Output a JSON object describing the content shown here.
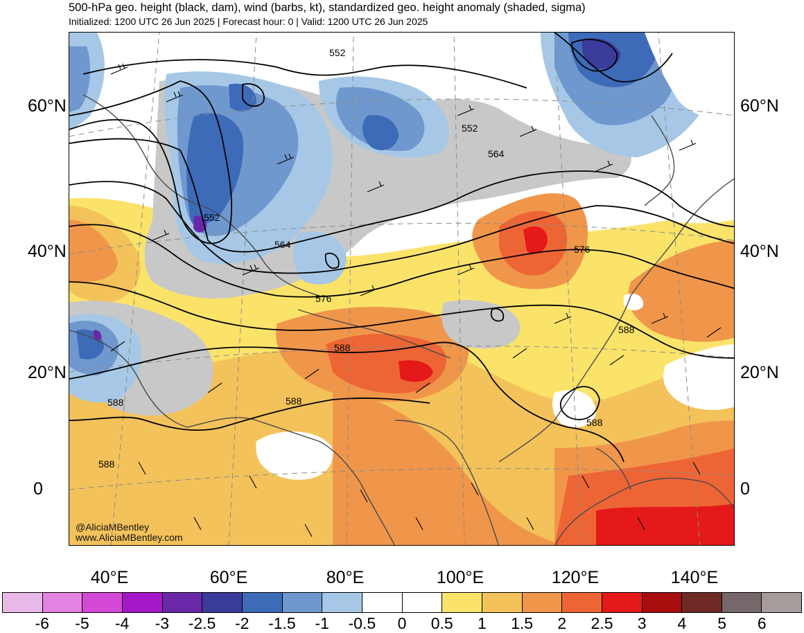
{
  "header": {
    "title": "500-hPa geo. height (black, dam), wind (barbs, kt), standardized geo. height anomaly (shaded, sigma)",
    "subtitle": "Initialized: 1200 UTC 26 Jun 2025 | Forecast hour: 0 | Valid: 1200 UTC 26 Jun 2025"
  },
  "map": {
    "lat_labels_left": [
      "60°N",
      "40°N",
      "20°N",
      "0"
    ],
    "lat_labels_right": [
      "60°N",
      "40°N",
      "20°N",
      "0"
    ],
    "lon_labels": [
      "40°E",
      "60°E",
      "80°E",
      "100°E",
      "120°E",
      "140°E"
    ],
    "contour_labels": [
      "552",
      "552",
      "552",
      "564",
      "564",
      "576",
      "576",
      "588",
      "588",
      "588",
      "588",
      "588",
      "588"
    ],
    "credit_handle": "@AliciaMBentley",
    "credit_url": "www.AliciaMBentley.com"
  },
  "colorbar": {
    "tick_labels": [
      "-6",
      "-5",
      "-4",
      "-3",
      "-2.5",
      "-2",
      "-1.5",
      "-1",
      "-0.5",
      "0",
      "0.5",
      "1",
      "1.5",
      "2",
      "2.5",
      "3",
      "4",
      "5",
      "6"
    ],
    "colors": [
      "#e8b9e6",
      "#e383e1",
      "#d449d6",
      "#a517c7",
      "#6a28a8",
      "#3b3b9b",
      "#3d6bb8",
      "#6f98cf",
      "#a6c8e6",
      "#ffffff",
      "#ffffff",
      "#fbe36a",
      "#f4c25a",
      "#f0964a",
      "#ee6535",
      "#e5191a",
      "#a70d0d",
      "#6f2a26",
      "#76686a",
      "#a69c9c"
    ]
  },
  "legend": {
    "shading_anomaly_colors": {
      "strong_negative": "#3d6bb8",
      "negative": "#6f98cf",
      "weak_negative": "#a6c8e6",
      "neutral": "#c8c8c8",
      "weak_positive": "#fbe36a",
      "positive": "#f4c25a",
      "strong_positive": "#f0964a",
      "very_strong_positive": "#ee6535",
      "extreme_positive": "#e5191a"
    }
  }
}
